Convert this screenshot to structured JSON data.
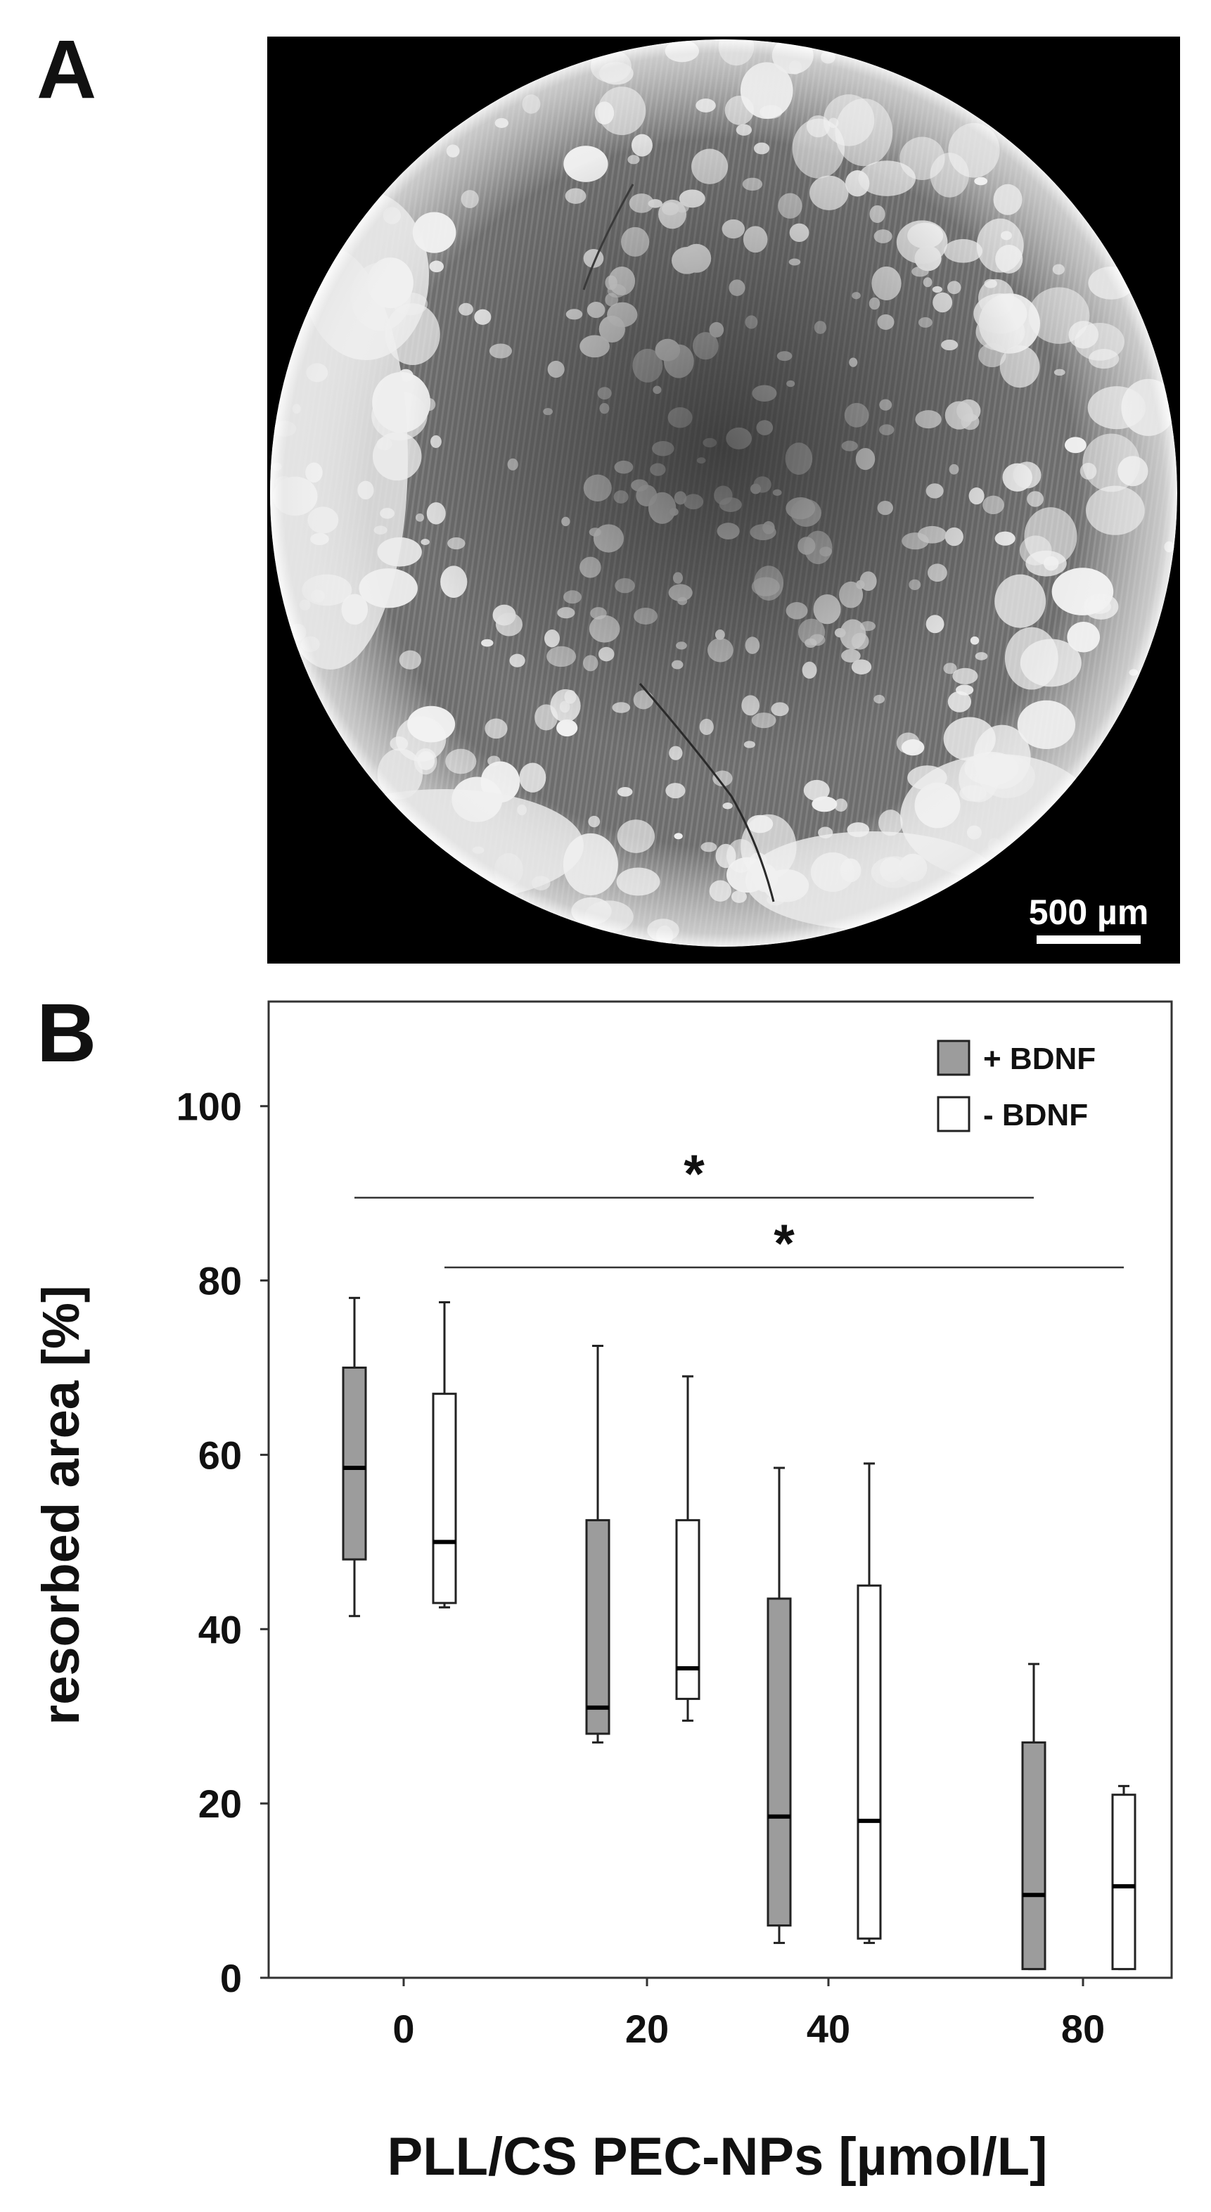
{
  "figure": {
    "panel_a_label": "A",
    "panel_b_label": "B"
  },
  "micrograph": {
    "scale_bar_label": "500 µm",
    "colors": {
      "background": "#000000",
      "tissue_dark": "#5a5a5a",
      "tissue_mid": "#8a8a8a",
      "bright": "#f2f2f2"
    }
  },
  "chart_data": {
    "type": "boxplot",
    "xlabel": "PLL/CS PEC-NPs [µmol/L]",
    "ylabel": "resorbed area [%]",
    "categories": [
      "0",
      "20",
      "40",
      "80"
    ],
    "ylim": [
      0,
      112
    ],
    "yticks": [
      0,
      20,
      40,
      60,
      80,
      100
    ],
    "legend_position": "top-right",
    "grid": false,
    "series": [
      {
        "name": "+ BDNF",
        "color": "#9c9c9c",
        "boxes": [
          {
            "category": "0",
            "min": 41.5,
            "q1": 48,
            "median": 58.5,
            "q3": 70,
            "max": 78
          },
          {
            "category": "20",
            "min": 27,
            "q1": 28,
            "median": 31,
            "q3": 52.5,
            "max": 72.5
          },
          {
            "category": "40",
            "min": 4,
            "q1": 6,
            "median": 18.5,
            "q3": 43.5,
            "max": 58.5
          },
          {
            "category": "80",
            "min": 1,
            "q1": 1,
            "median": 9.5,
            "q3": 27,
            "max": 36
          }
        ]
      },
      {
        "name": "- BDNF",
        "color": "#ffffff",
        "boxes": [
          {
            "category": "0",
            "min": 42.5,
            "q1": 43,
            "median": 50,
            "q3": 67,
            "max": 77.5
          },
          {
            "category": "20",
            "min": 29.5,
            "q1": 32,
            "median": 35.5,
            "q3": 52.5,
            "max": 69
          },
          {
            "category": "40",
            "min": 4,
            "q1": 4.5,
            "median": 18,
            "q3": 45,
            "max": 59
          },
          {
            "category": "80",
            "min": 1,
            "q1": 1,
            "median": 10.5,
            "q3": 21,
            "max": 22
          }
        ]
      }
    ],
    "significance": [
      {
        "label": "*",
        "y": 89.5,
        "from": "0 + BDNF",
        "to": "80 + BDNF"
      },
      {
        "label": "*",
        "y": 81.5,
        "from": "0 - BDNF",
        "to": "80 - BDNF"
      }
    ]
  }
}
